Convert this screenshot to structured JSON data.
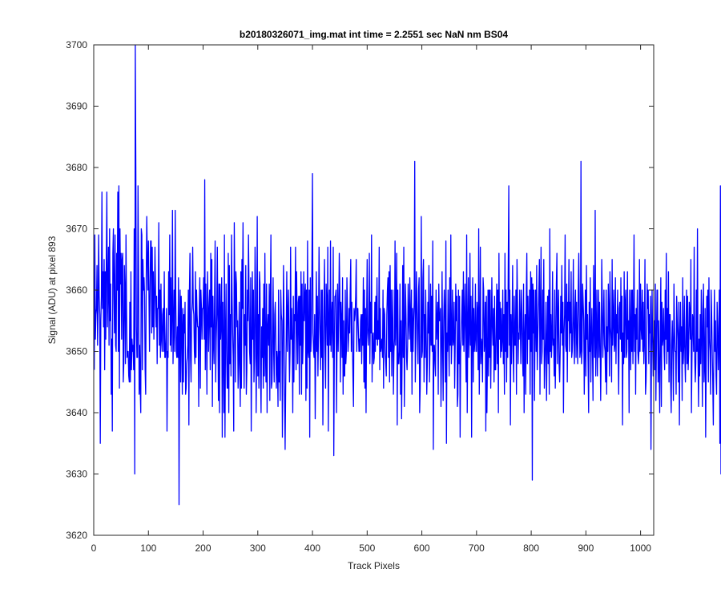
{
  "chart_data": {
    "type": "line",
    "title": "b20180326071_img.mat int time = 2.2551 sec  NaN nm BS04",
    "xlabel": "Track Pixels",
    "ylabel": "Signal (ADU) at pixel 893",
    "xlim": [
      0,
      1024
    ],
    "ylim": [
      3620,
      3700
    ],
    "xticks": [
      0,
      100,
      200,
      300,
      400,
      500,
      600,
      700,
      800,
      900,
      1000
    ],
    "yticks": [
      3620,
      3630,
      3640,
      3650,
      3660,
      3670,
      3680,
      3690,
      3700
    ],
    "grid": false,
    "legend": "none",
    "series_color": "#0000ff",
    "series": [
      {
        "x_start": 1,
        "x_step": 1,
        "values": [
          3647,
          3669,
          3652,
          3656,
          3657,
          3664,
          3651,
          3657,
          3669,
          3659,
          3656,
          3635,
          3655,
          3659,
          3676,
          3657,
          3663,
          3654,
          3665,
          3647,
          3663,
          3652,
          3665,
          3676,
          3654,
          3660,
          3667,
          3651,
          3670,
          3655,
          3661,
          3643,
          3652,
          3637,
          3666,
          3670,
          3659,
          3653,
          3669,
          3651,
          3650,
          3666,
          3660,
          3676,
          3650,
          3677,
          3644,
          3670,
          3661,
          3666,
          3652,
          3665,
          3666,
          3645,
          3648,
          3664,
          3660,
          3648,
          3669,
          3657,
          3649,
          3650,
          3650,
          3646,
          3645,
          3658,
          3645,
          3663,
          3647,
          3652,
          3650,
          3651,
          3647,
          3670,
          3630,
          3700,
          3680,
          3654,
          3649,
          3649,
          3677,
          3663,
          3643,
          3651,
          3644,
          3640,
          3670,
          3669,
          3647,
          3665,
          3660,
          3662,
          3659,
          3647,
          3643,
          3662,
          3672,
          3665,
          3660,
          3668,
          3659,
          3650,
          3660,
          3668,
          3668,
          3653,
          3667,
          3654,
          3663,
          3652,
          3658,
          3667,
          3660,
          3654,
          3659,
          3648,
          3657,
          3657,
          3671,
          3651,
          3660,
          3649,
          3661,
          3652,
          3650,
          3656,
          3657,
          3650,
          3663,
          3649,
          3649,
          3652,
          3657,
          3637,
          3650,
          3649,
          3663,
          3656,
          3669,
          3651,
          3662,
          3650,
          3656,
          3673,
          3648,
          3653,
          3660,
          3650,
          3673,
          3659,
          3650,
          3649,
          3654,
          3649,
          3662,
          3625,
          3655,
          3660,
          3645,
          3659,
          3654,
          3643,
          3657,
          3645,
          3656,
          3653,
          3658,
          3643,
          3644,
          3648,
          3649,
          3651,
          3660,
          3638,
          3660,
          3666,
          3649,
          3645,
          3656,
          3658,
          3667,
          3657,
          3656,
          3650,
          3648,
          3663,
          3649,
          3660,
          3656,
          3654,
          3654,
          3641,
          3657,
          3662,
          3644,
          3660,
          3657,
          3652,
          3657,
          3657,
          3662,
          3652,
          3678,
          3647,
          3661,
          3654,
          3643,
          3663,
          3658,
          3650,
          3657,
          3660,
          3647,
          3666,
          3654,
          3665,
          3641,
          3659,
          3652,
          3648,
          3659,
          3668,
          3645,
          3652,
          3656,
          3667,
          3655,
          3642,
          3661,
          3640,
          3661,
          3652,
          3655,
          3662,
          3636,
          3658,
          3650,
          3640,
          3669,
          3636,
          3652,
          3661,
          3650,
          3644,
          3644,
          3666,
          3640,
          3664,
          3648,
          3656,
          3646,
          3669,
          3659,
          3653,
          3649,
          3637,
          3671,
          3660,
          3645,
          3663,
          3661,
          3654,
          3655,
          3644,
          3648,
          3658,
          3648,
          3641,
          3663,
          3644,
          3665,
          3657,
          3671,
          3653,
          3644,
          3656,
          3651,
          3664,
          3643,
          3647,
          3660,
          3655,
          3669,
          3660,
          3650,
          3648,
          3662,
          3637,
          3650,
          3663,
          3652,
          3660,
          3645,
          3649,
          3667,
          3660,
          3640,
          3650,
          3672,
          3646,
          3656,
          3644,
          3663,
          3661,
          3647,
          3640,
          3654,
          3649,
          3657,
          3644,
          3661,
          3646,
          3666,
          3650,
          3645,
          3661,
          3640,
          3654,
          3656,
          3651,
          3661,
          3642,
          3659,
          3669,
          3644,
          3645,
          3652,
          3662,
          3650,
          3645,
          3656,
          3658,
          3652,
          3644,
          3650,
          3648,
          3641,
          3660,
          3645,
          3650,
          3642,
          3660,
          3656,
          3655,
          3636,
          3650,
          3664,
          3655,
          3643,
          3634,
          3644,
          3652,
          3663,
          3650,
          3656,
          3660,
          3652,
          3645,
          3650,
          3667,
          3652,
          3657,
          3651,
          3640,
          3659,
          3645,
          3656,
          3655,
          3667,
          3647,
          3663,
          3655,
          3648,
          3658,
          3659,
          3643,
          3659,
          3651,
          3663,
          3643,
          3661,
          3648,
          3652,
          3663,
          3655,
          3659,
          3661,
          3642,
          3660,
          3644,
          3668,
          3650,
          3649,
          3660,
          3636,
          3662,
          3650,
          3653,
          3664,
          3679,
          3653,
          3650,
          3649,
          3656,
          3639,
          3651,
          3663,
          3650,
          3659,
          3646,
          3653,
          3667,
          3657,
          3652,
          3647,
          3660,
          3649,
          3660,
          3638,
          3650,
          3658,
          3665,
          3650,
          3644,
          3661,
          3658,
          3651,
          3667,
          3637,
          3655,
          3660,
          3651,
          3668,
          3650,
          3655,
          3658,
          3649,
          3667,
          3633,
          3650,
          3659,
          3659,
          3660,
          3640,
          3652,
          3661,
          3650,
          3656,
          3666,
          3660,
          3645,
          3658,
          3655,
          3649,
          3662,
          3643,
          3655,
          3646,
          3646,
          3660,
          3648,
          3650,
          3662,
          3657,
          3650,
          3652,
          3657,
          3653,
          3660,
          3665,
          3650,
          3658,
          3652,
          3646,
          3641,
          3657,
          3655,
          3656,
          3659,
          3665,
          3650,
          3657,
          3657,
          3653,
          3650,
          3652,
          3650,
          3655,
          3656,
          3648,
          3656,
          3651,
          3662,
          3645,
          3660,
          3644,
          3657,
          3640,
          3655,
          3665,
          3653,
          3651,
          3654,
          3666,
          3648,
          3658,
          3653,
          3669,
          3645,
          3652,
          3653,
          3648,
          3649,
          3658,
          3650,
          3659,
          3652,
          3662,
          3651,
          3655,
          3652,
          3667,
          3647,
          3657,
          3650,
          3651,
          3652,
          3649,
          3660,
          3644,
          3657,
          3656,
          3650,
          3648,
          3646,
          3656,
          3660,
          3662,
          3649,
          3663,
          3645,
          3664,
          3650,
          3660,
          3646,
          3654,
          3660,
          3643,
          3650,
          3652,
          3668,
          3651,
          3657,
          3666,
          3638,
          3660,
          3648,
          3648,
          3650,
          3661,
          3643,
          3655,
          3639,
          3650,
          3664,
          3649,
          3667,
          3641,
          3652,
          3661,
          3656,
          3649,
          3647,
          3651,
          3661,
          3655,
          3652,
          3662,
          3656,
          3650,
          3660,
          3643,
          3657,
          3650,
          3655,
          3658,
          3681,
          3645,
          3652,
          3663,
          3658,
          3652,
          3648,
          3660,
          3662,
          3640,
          3644,
          3653,
          3672,
          3649,
          3650,
          3662,
          3665,
          3645,
          3656,
          3649,
          3660,
          3653,
          3643,
          3648,
          3658,
          3653,
          3664,
          3645,
          3652,
          3661,
          3651,
          3659,
          3650,
          3668,
          3634,
          3651,
          3651,
          3648,
          3646,
          3660,
          3652,
          3655,
          3658,
          3643,
          3661,
          3655,
          3655,
          3657,
          3641,
          3649,
          3663,
          3651,
          3642,
          3655,
          3660,
          3656,
          3645,
          3668,
          3635,
          3653,
          3650,
          3660,
          3652,
          3646,
          3662,
          3651,
          3669,
          3648,
          3652,
          3660,
          3651,
          3652,
          3658,
          3644,
          3651,
          3661,
          3655,
          3659,
          3641,
          3643,
          3660,
          3648,
          3659,
          3636,
          3650,
          3652,
          3656,
          3660,
          3651,
          3663,
          3650,
          3655,
          3661,
          3652,
          3645,
          3669,
          3640,
          3653,
          3662,
          3649,
          3653,
          3666,
          3651,
          3659,
          3636,
          3654,
          3662,
          3645,
          3657,
          3650,
          3652,
          3661,
          3650,
          3650,
          3658,
          3656,
          3647,
          3670,
          3643,
          3651,
          3667,
          3648,
          3652,
          3651,
          3645,
          3662,
          3660,
          3650,
          3652,
          3658,
          3637,
          3659,
          3640,
          3649,
          3660,
          3646,
          3660,
          3649,
          3660,
          3644,
          3653,
          3662,
          3654,
          3651,
          3657,
          3645,
          3659,
          3647,
          3647,
          3654,
          3661,
          3648,
          3660,
          3640,
          3666,
          3652,
          3658,
          3649,
          3657,
          3650,
          3652,
          3660,
          3648,
          3656,
          3643,
          3666,
          3650,
          3660,
          3645,
          3658,
          3649,
          3664,
          3677,
          3651,
          3660,
          3638,
          3656,
          3648,
          3654,
          3664,
          3650,
          3645,
          3659,
          3651,
          3651,
          3660,
          3643,
          3665,
          3658,
          3648,
          3653,
          3652,
          3660,
          3655,
          3648,
          3660,
          3656,
          3650,
          3646,
          3661,
          3640,
          3652,
          3656,
          3643,
          3659,
          3666,
          3648,
          3659,
          3652,
          3652,
          3660,
          3643,
          3663,
          3650,
          3662,
          3629,
          3661,
          3653,
          3660,
          3642,
          3654,
          3660,
          3650,
          3664,
          3647,
          3652,
          3656,
          3660,
          3665,
          3643,
          3657,
          3667,
          3648,
          3650,
          3660,
          3652,
          3665,
          3644,
          3648,
          3652,
          3658,
          3642,
          3651,
          3659,
          3648,
          3660,
          3643,
          3670,
          3650,
          3656,
          3649,
          3652,
          3663,
          3651,
          3652,
          3646,
          3660,
          3644,
          3650,
          3661,
          3666,
          3648,
          3655,
          3660,
          3648,
          3645,
          3650,
          3659,
          3653,
          3664,
          3651,
          3658,
          3640,
          3653,
          3656,
          3669,
          3651,
          3650,
          3661,
          3645,
          3658,
          3655,
          3665,
          3650,
          3658,
          3653,
          3663,
          3649,
          3650,
          3655,
          3665,
          3652,
          3648,
          3657,
          3660,
          3649,
          3658,
          3652,
          3648,
          3660,
          3666,
          3656,
          3649,
          3650,
          3681,
          3648,
          3650,
          3661,
          3658,
          3655,
          3643,
          3650,
          3660,
          3646,
          3664,
          3652,
          3656,
          3648,
          3640,
          3658,
          3650,
          3662,
          3645,
          3652,
          3657,
          3650,
          3642,
          3664,
          3655,
          3649,
          3673,
          3646,
          3652,
          3660,
          3646,
          3653,
          3660,
          3649,
          3658,
          3652,
          3642,
          3650,
          3665,
          3658,
          3649,
          3654,
          3660,
          3651,
          3650,
          3645,
          3660,
          3643,
          3654,
          3650,
          3661,
          3657,
          3646,
          3663,
          3654,
          3652,
          3645,
          3665,
          3651,
          3655,
          3660,
          3650,
          3651,
          3662,
          3648,
          3656,
          3653,
          3660,
          3650,
          3643,
          3657,
          3658,
          3652,
          3662,
          3650,
          3659,
          3638,
          3653,
          3648,
          3663,
          3649,
          3658,
          3660,
          3649,
          3650,
          3663,
          3652,
          3655,
          3640,
          3660,
          3654,
          3647,
          3660,
          3650,
          3660,
          3648,
          3655,
          3669,
          3650,
          3656,
          3643,
          3657,
          3652,
          3660,
          3650,
          3648,
          3650,
          3665,
          3650,
          3661,
          3654,
          3652,
          3660,
          3650,
          3658,
          3648,
          3652,
          3665,
          3643,
          3645,
          3650,
          3661,
          3657,
          3660,
          3648,
          3656,
          3653,
          3659,
          3634,
          3650,
          3660,
          3652,
          3646,
          3652,
          3655,
          3647,
          3661,
          3642,
          3651,
          3660,
          3660,
          3645,
          3655,
          3647,
          3640,
          3653,
          3662,
          3641,
          3658,
          3651,
          3652,
          3657,
          3650,
          3647,
          3660,
          3652,
          3666,
          3648,
          3657,
          3650,
          3663,
          3645,
          3656,
          3656,
          3645,
          3640,
          3651,
          3655,
          3650,
          3642,
          3661,
          3654,
          3650,
          3650,
          3643,
          3659,
          3655,
          3652,
          3645,
          3658,
          3638,
          3652,
          3658,
          3650,
          3654,
          3642,
          3662,
          3648,
          3651,
          3659,
          3649,
          3645,
          3653,
          3660,
          3648,
          3659,
          3647,
          3650,
          3658,
          3656,
          3652,
          3665,
          3640,
          3649,
          3656,
          3655,
          3650,
          3667,
          3649,
          3645,
          3648,
          3660,
          3650,
          3670,
          3649,
          3641,
          3652,
          3646,
          3656,
          3648,
          3660,
          3653,
          3641,
          3657,
          3661,
          3645,
          3648,
          3657,
          3636,
          3648,
          3659,
          3654,
          3660,
          3645,
          3662,
          3652,
          3650,
          3643,
          3660,
          3656,
          3650,
          3645,
          3638,
          3651,
          3660,
          3650,
          3655,
          3646,
          3643,
          3658,
          3654,
          3647,
          3652,
          3660,
          3635,
          3677,
          3630,
          3667,
          3645,
          3642,
          3660,
          3650
        ]
      }
    ]
  }
}
